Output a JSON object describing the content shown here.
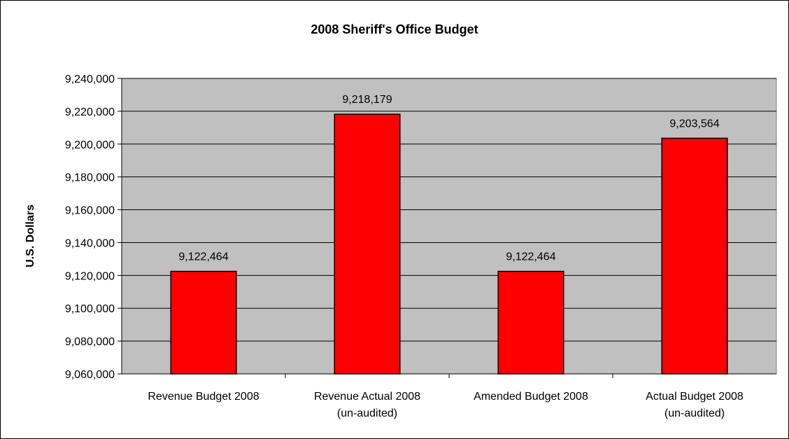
{
  "chart_data": {
    "type": "bar",
    "title": "2008 Sheriff's Office Budget",
    "xlabel": "",
    "ylabel": "U.S. Dollars",
    "ylim": [
      9060000,
      9240000
    ],
    "yticks": [
      9060000,
      9080000,
      9100000,
      9120000,
      9140000,
      9160000,
      9180000,
      9200000,
      9220000,
      9240000
    ],
    "ytick_labels": [
      "9,060,000",
      "9,080,000",
      "9,100,000",
      "9,120,000",
      "9,140,000",
      "9,160,000",
      "9,180,000",
      "9,200,000",
      "9,220,000",
      "9,240,000"
    ],
    "categories": [
      [
        "Revenue Budget 2008"
      ],
      [
        "Revenue Actual 2008",
        "(un-audited)"
      ],
      [
        "Amended Budget 2008"
      ],
      [
        "Actual Budget 2008",
        "(un-audited)"
      ]
    ],
    "values": [
      9122464,
      9218179,
      9122464,
      9203564
    ],
    "data_labels": [
      "9,122,464",
      "9,218,179",
      "9,122,464",
      "9,203,564"
    ],
    "grid": true,
    "legend": "none",
    "colors": {
      "bar": "#ff0000",
      "bar_border": "#000000",
      "plot_background": "#c0c0c0",
      "gridline": "#000000"
    }
  }
}
